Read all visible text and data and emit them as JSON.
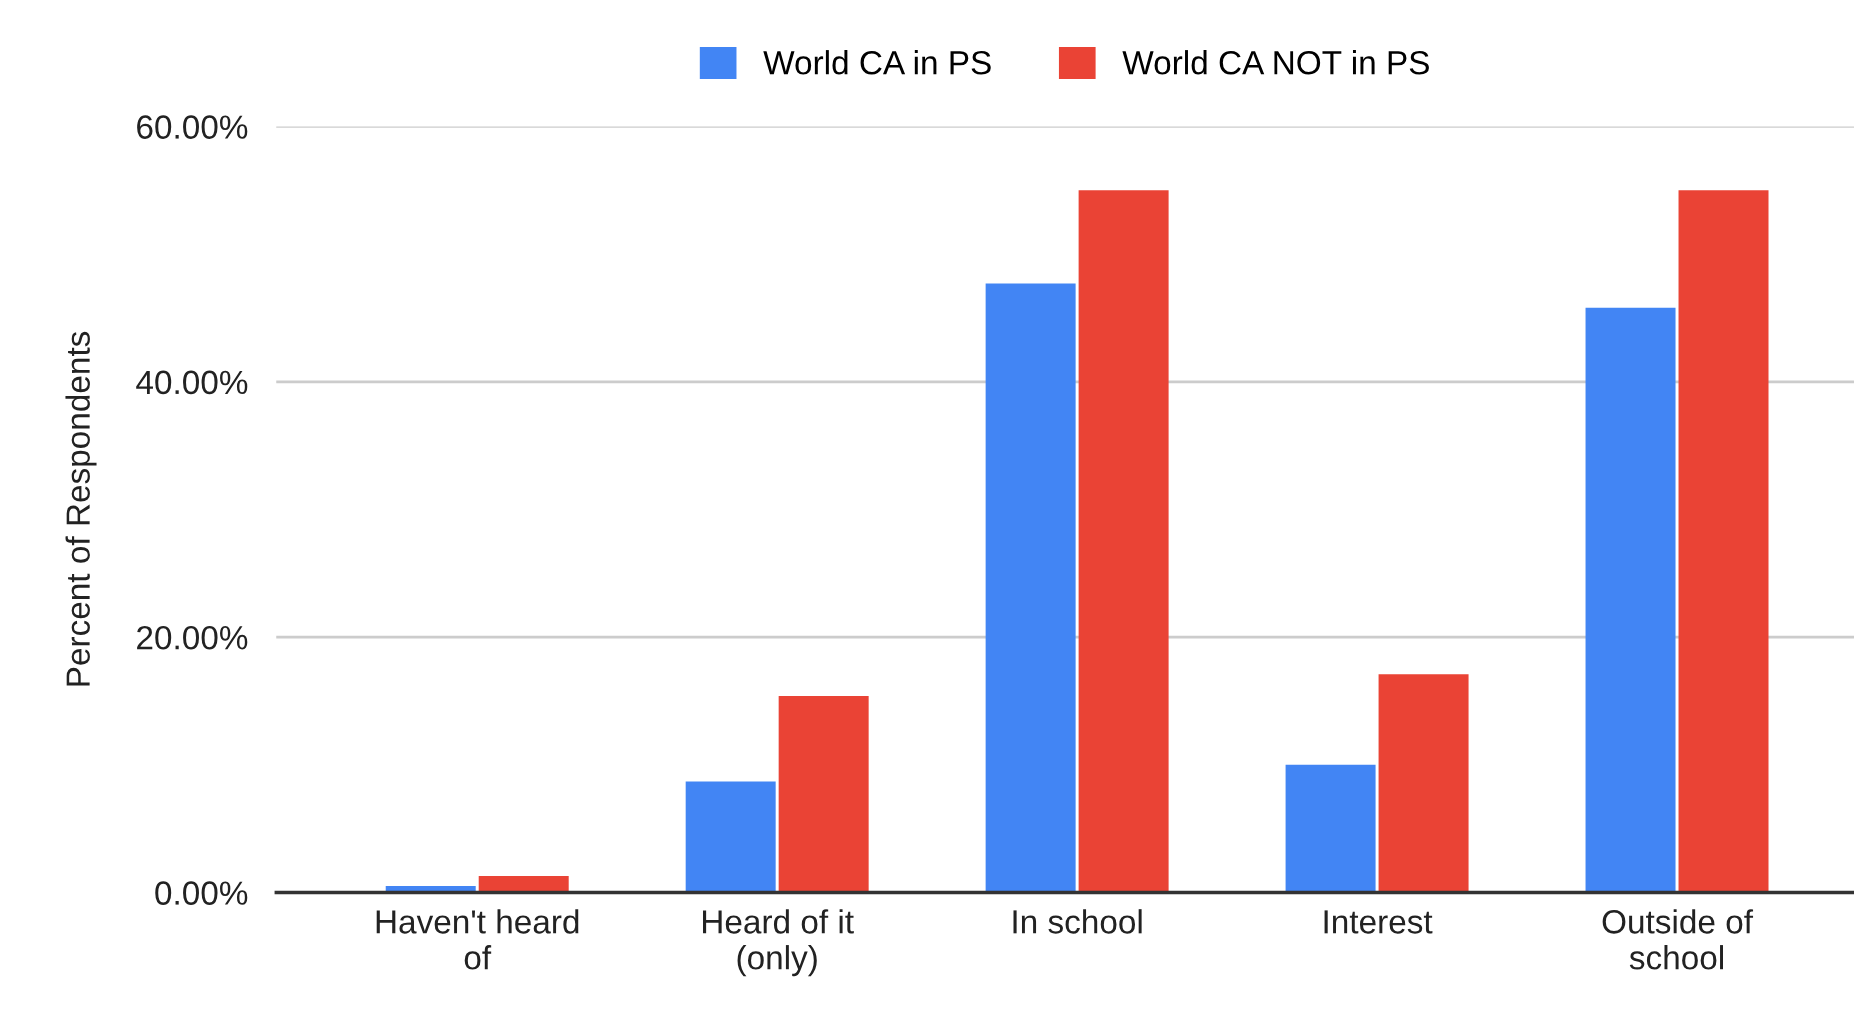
{
  "chart_data": {
    "type": "bar",
    "ylabel": "Percent of Respondents",
    "categories": [
      "Haven't heard\nof",
      "Heard of it\n(only)",
      "In school",
      "Interest",
      "Outside of\nschool"
    ],
    "series": [
      {
        "name": "World CA in PS",
        "color": "#4285f4",
        "values": [
          0.5,
          8.7,
          47.7,
          10.0,
          45.8
        ]
      },
      {
        "name": "World CA NOT in PS",
        "color": "#ea4335",
        "values": [
          1.3,
          15.4,
          55.0,
          17.1,
          55.0
        ]
      }
    ],
    "ylim": [
      0,
      60
    ],
    "yticks": [
      {
        "value": 0,
        "label": "0.00%"
      },
      {
        "value": 20,
        "label": "20.00%"
      },
      {
        "value": 40,
        "label": "40.00%"
      },
      {
        "value": 60,
        "label": "60.00%"
      }
    ],
    "grid": "y",
    "legend": "top"
  }
}
